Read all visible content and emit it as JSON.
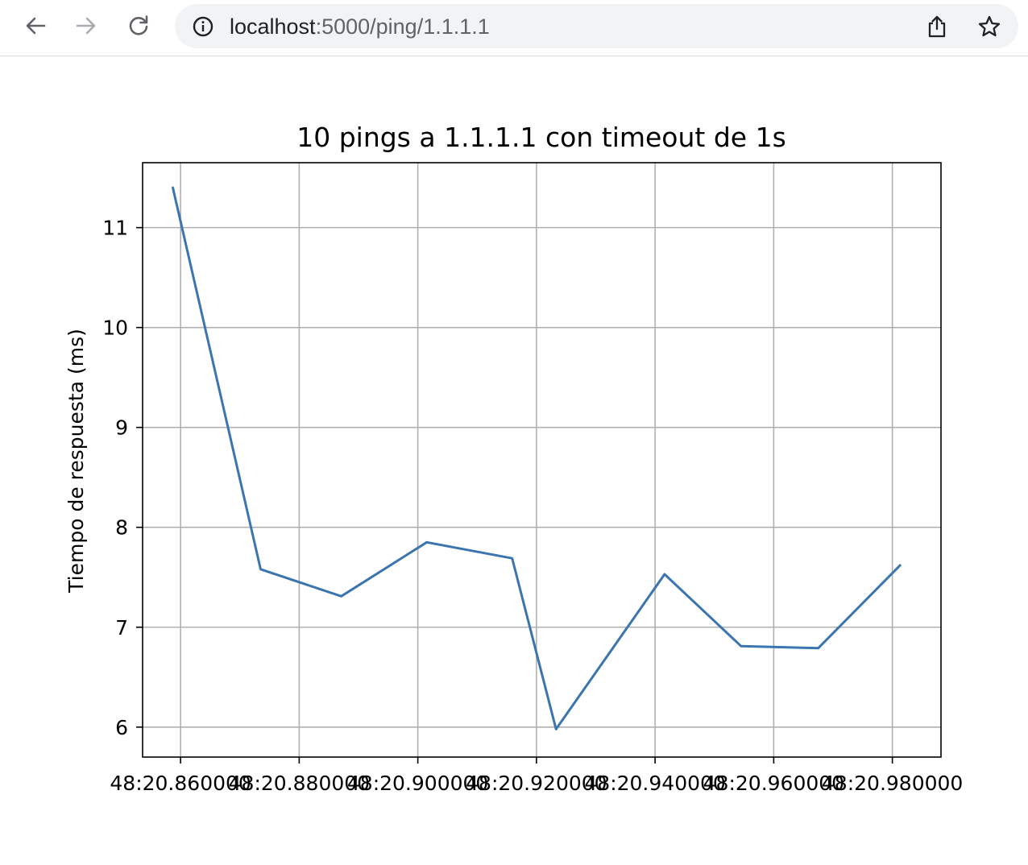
{
  "browser": {
    "url_host": "localhost",
    "url_path": ":5000/ping/1.1.1.1",
    "icons": {
      "back": "arrow-left-icon",
      "forward": "arrow-right-icon",
      "reload": "reload-icon",
      "site_info": "info-circle-icon",
      "share": "share-icon",
      "bookmark": "star-icon"
    }
  },
  "chart_data": {
    "type": "line",
    "title": "10 pings a 1.1.1.1 con timeout de 1s",
    "xlabel": "",
    "ylabel": "Tiempo de respuesta (ms)",
    "x_tick_labels": [
      "48:20.860000",
      "48:20.880000",
      "48:20.900000",
      "48:20.920000",
      "48:20.940000",
      "48:20.960000",
      "48:20.980000"
    ],
    "x_tick_values": [
      0.86,
      0.88,
      0.9,
      0.92,
      0.94,
      0.96,
      0.98
    ],
    "y_ticks": [
      6,
      7,
      8,
      9,
      10,
      11
    ],
    "xlim": [
      0.8536,
      0.9882
    ],
    "ylim": [
      5.7,
      11.65
    ],
    "grid": true,
    "series": [
      {
        "color": "#3a75b0",
        "x": [
          0.8587,
          0.8735,
          0.8871,
          0.9015,
          0.9159,
          0.9233,
          0.9416,
          0.9545,
          0.9675,
          0.9813
        ],
        "y": [
          11.4,
          7.58,
          7.31,
          7.85,
          7.69,
          5.98,
          7.53,
          6.81,
          6.79,
          7.62
        ]
      }
    ]
  }
}
